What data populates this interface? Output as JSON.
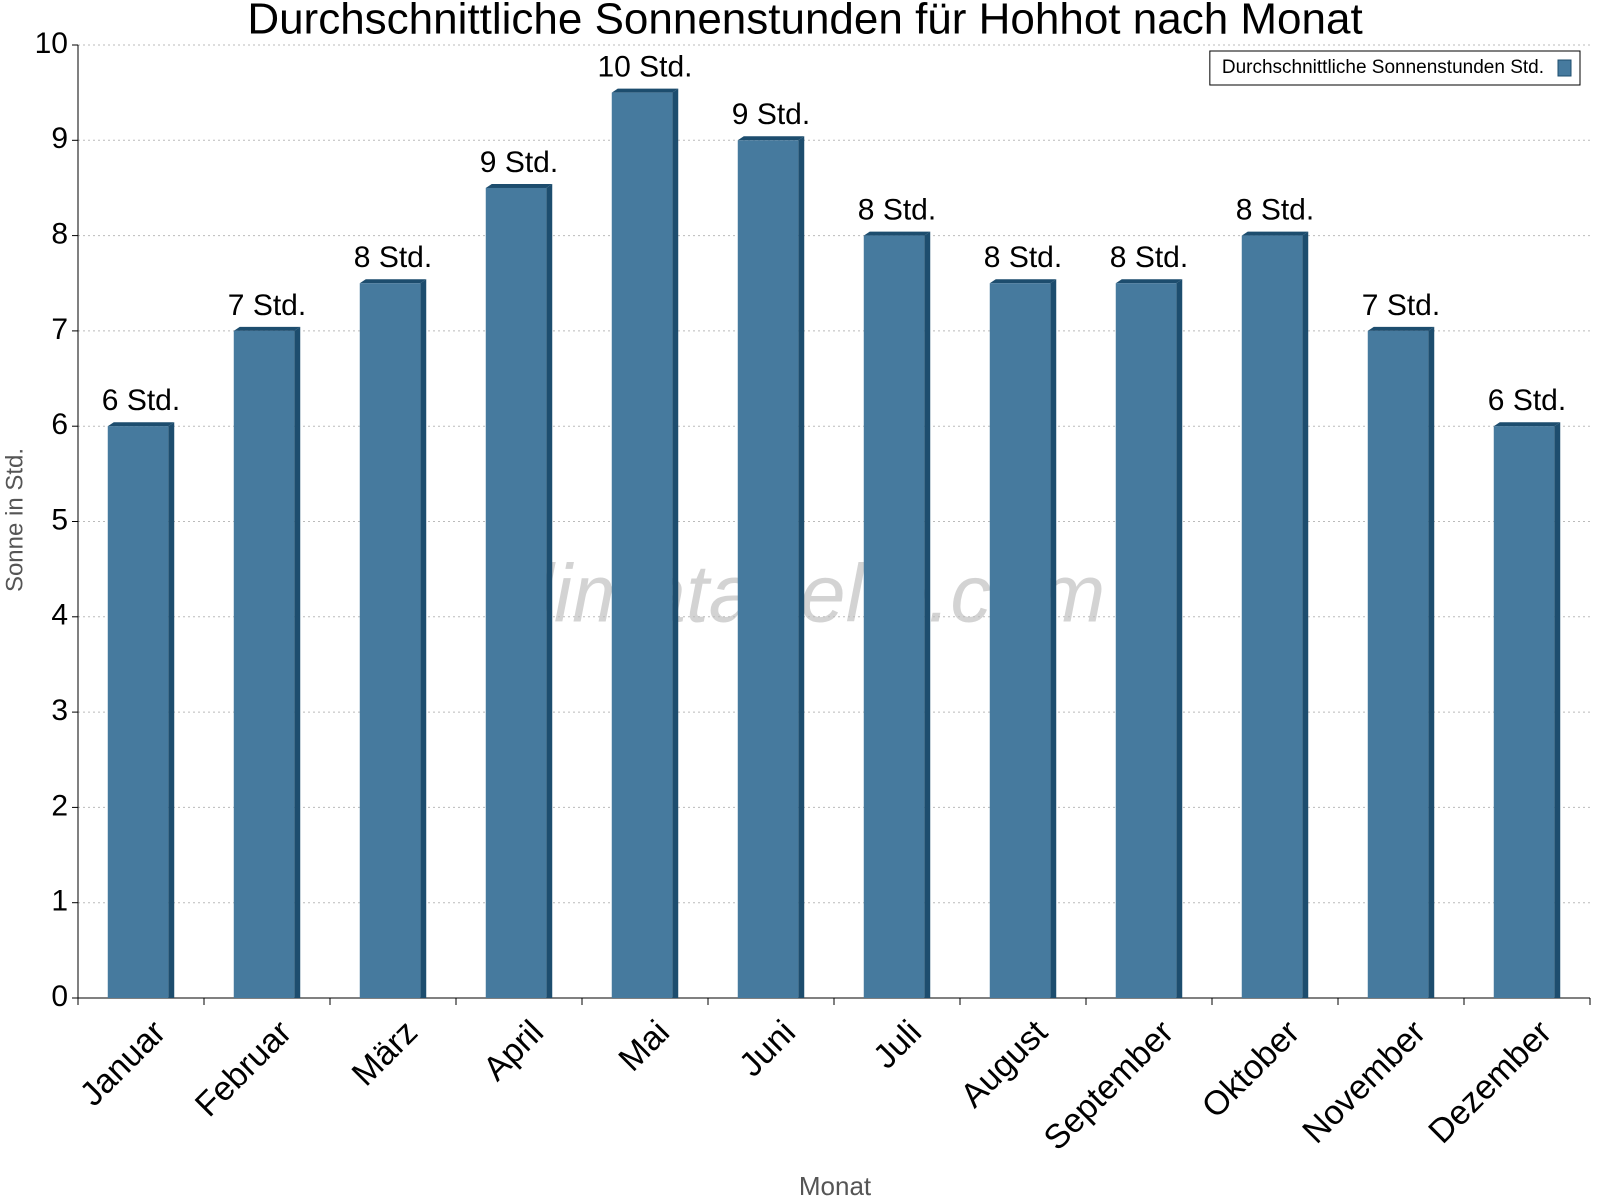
{
  "chart_data": {
    "type": "bar",
    "title": "Durchschnittliche Sonnenstunden für Hohhot nach Monat",
    "watermark": "klimatabelle.com",
    "x_label": "Monat",
    "y_label": "Sonne in Std.",
    "categories": [
      "Januar",
      "Februar",
      "März",
      "April",
      "Mai",
      "Juni",
      "Juli",
      "August",
      "September",
      "Oktober",
      "November",
      "Dezember"
    ],
    "series": [
      {
        "name": "Durchschnittliche Sonnenstunden Std.",
        "color": "#467a9e",
        "values": [
          6,
          7,
          7.5,
          8.5,
          9.5,
          9,
          8,
          7.5,
          7.5,
          8,
          7,
          6
        ],
        "value_labels": [
          "6 Std.",
          "7 Std.",
          "8 Std.",
          "9 Std.",
          "10 Std.",
          "9 Std.",
          "8 Std.",
          "8 Std.",
          "8 Std.",
          "8 Std.",
          "7 Std.",
          "6 Std."
        ]
      }
    ],
    "ylim": [
      0,
      10
    ],
    "yticks": [
      0,
      1,
      2,
      3,
      4,
      5,
      6,
      7,
      8,
      9,
      10
    ],
    "grid": true,
    "legend": "top-right"
  }
}
